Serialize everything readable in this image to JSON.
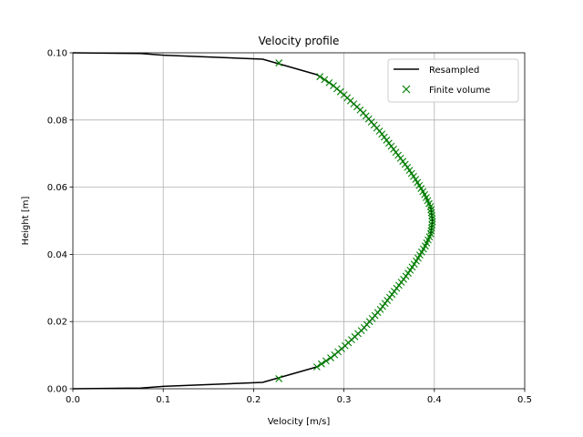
{
  "chart_data": {
    "type": "line",
    "title": "Velocity profile",
    "xlabel": "Velocity [m/s]",
    "ylabel": "Height [m]",
    "xlim": [
      0.0,
      0.5
    ],
    "ylim": [
      0.0,
      0.1
    ],
    "xticks": [
      "0.0",
      "0.1",
      "0.2",
      "0.3",
      "0.4",
      "0.5"
    ],
    "yticks": [
      "0.00",
      "0.02",
      "0.04",
      "0.06",
      "0.08",
      "0.10"
    ],
    "grid": true,
    "legend_position": "top-right",
    "series": [
      {
        "name": "Resampled",
        "style": "line",
        "color": "#000000",
        "points": [
          [
            0.0,
            0.0
          ],
          [
            0.075,
            0.0002
          ],
          [
            0.1,
            0.0007
          ],
          [
            0.21,
            0.0019
          ],
          [
            0.27,
            0.0065
          ],
          [
            0.287,
            0.0095
          ],
          [
            0.3,
            0.0125
          ],
          [
            0.31,
            0.015
          ],
          [
            0.32,
            0.0175
          ],
          [
            0.33,
            0.0205
          ],
          [
            0.34,
            0.0235
          ],
          [
            0.35,
            0.027
          ],
          [
            0.36,
            0.0305
          ],
          [
            0.37,
            0.034
          ],
          [
            0.38,
            0.038
          ],
          [
            0.39,
            0.0425
          ],
          [
            0.396,
            0.046
          ],
          [
            0.398,
            0.05
          ],
          [
            0.396,
            0.054
          ],
          [
            0.39,
            0.0575
          ],
          [
            0.38,
            0.062
          ],
          [
            0.37,
            0.066
          ],
          [
            0.36,
            0.0695
          ],
          [
            0.35,
            0.073
          ],
          [
            0.34,
            0.0765
          ],
          [
            0.33,
            0.0795
          ],
          [
            0.32,
            0.0825
          ],
          [
            0.31,
            0.085
          ],
          [
            0.3,
            0.0875
          ],
          [
            0.287,
            0.0905
          ],
          [
            0.27,
            0.0935
          ],
          [
            0.21,
            0.0981
          ],
          [
            0.1,
            0.0993
          ],
          [
            0.075,
            0.0998
          ],
          [
            0.0,
            0.1
          ]
        ]
      },
      {
        "name": "Finite volume",
        "style": "marker-x",
        "color": "#008000"
      }
    ]
  },
  "legend": {
    "entries": [
      "Resampled",
      "Finite volume"
    ]
  }
}
